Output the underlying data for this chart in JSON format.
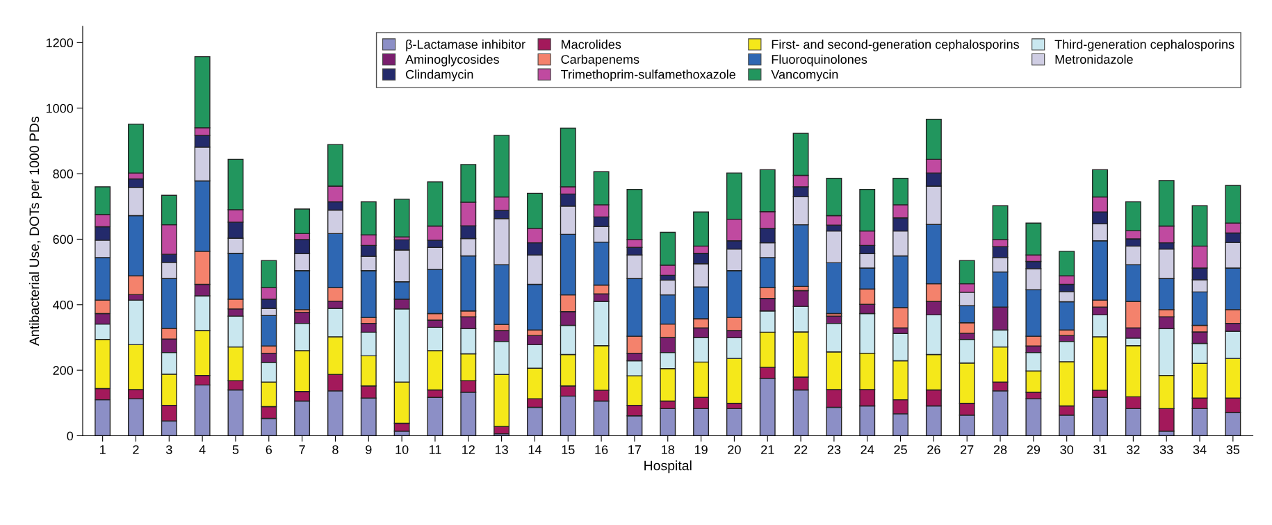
{
  "chart_data": {
    "type": "bar",
    "stacked": true,
    "xlabel": "Hospital",
    "ylabel": "Antibacterial Use, DOTs per 1000 PDs",
    "categories": [
      "1",
      "2",
      "3",
      "4",
      "5",
      "6",
      "7",
      "8",
      "9",
      "10",
      "11",
      "12",
      "13",
      "14",
      "15",
      "16",
      "17",
      "18",
      "19",
      "20",
      "21",
      "22",
      "23",
      "24",
      "25",
      "26",
      "27",
      "28",
      "29",
      "30",
      "31",
      "32",
      "33",
      "34",
      "35"
    ],
    "ylim": [
      0,
      1250
    ],
    "yticks": [
      0,
      200,
      400,
      600,
      800,
      1000,
      1200
    ],
    "grid": false,
    "legend": "top right",
    "series": [
      {
        "name": "β-Lactamase inhibitor",
        "color": "#8c8fc6",
        "values": [
          110,
          113,
          45,
          155,
          140,
          53,
          106,
          137,
          115,
          14,
          117,
          133,
          6,
          87,
          121,
          106,
          61,
          83,
          83,
          83,
          175,
          140,
          87,
          91,
          67,
          91,
          63,
          137,
          113,
          63,
          117,
          83,
          14,
          83,
          71
        ]
      },
      {
        "name": "Macrolides",
        "color": "#a3195b",
        "values": [
          34,
          28,
          48,
          29,
          28,
          36,
          29,
          50,
          37,
          24,
          23,
          35,
          22,
          26,
          31,
          33,
          32,
          23,
          34,
          16,
          34,
          39,
          54,
          50,
          43,
          49,
          36,
          27,
          20,
          28,
          22,
          36,
          69,
          32,
          44
        ]
      },
      {
        "name": "First- and second-generation cephalosporins",
        "color": "#f5e81a",
        "values": [
          150,
          137,
          95,
          137,
          103,
          75,
          125,
          115,
          92,
          126,
          120,
          82,
          159,
          93,
          96,
          136,
          90,
          99,
          108,
          137,
          107,
          138,
          115,
          111,
          119,
          108,
          123,
          107,
          65,
          135,
          163,
          156,
          101,
          106,
          121
        ]
      },
      {
        "name": "Third-generation cephalosporins",
        "color": "#c9e7ef",
        "values": [
          47,
          136,
          66,
          106,
          94,
          60,
          83,
          87,
          72,
          223,
          71,
          77,
          101,
          72,
          89,
          135,
          46,
          49,
          75,
          63,
          65,
          78,
          87,
          121,
          83,
          121,
          72,
          52,
          56,
          62,
          67,
          23,
          143,
          61,
          83
        ]
      },
      {
        "name": "Aminoglycosides",
        "color": "#7a1f6e",
        "values": [
          32,
          17,
          41,
          35,
          22,
          28,
          34,
          22,
          27,
          30,
          22,
          36,
          33,
          28,
          42,
          23,
          23,
          46,
          29,
          22,
          38,
          48,
          22,
          28,
          17,
          41,
          19,
          70,
          20,
          18,
          24,
          31,
          36,
          35,
          24
        ]
      },
      {
        "name": "Carbapenems",
        "color": "#f4826c",
        "values": [
          41,
          57,
          33,
          101,
          30,
          22,
          8,
          41,
          18,
          0,
          20,
          18,
          19,
          17,
          51,
          27,
          52,
          41,
          28,
          40,
          33,
          13,
          8,
          47,
          62,
          54,
          32,
          0,
          30,
          17,
          21,
          81,
          22,
          20,
          42
        ]
      },
      {
        "name": "Fluoroquinolones",
        "color": "#2e67b3",
        "values": [
          130,
          184,
          152,
          215,
          140,
          93,
          119,
          165,
          143,
          53,
          135,
          168,
          182,
          139,
          185,
          131,
          176,
          89,
          97,
          143,
          92,
          188,
          155,
          64,
          158,
          181,
          52,
          107,
          142,
          86,
          181,
          112,
          95,
          102,
          127
        ]
      },
      {
        "name": "Metronidazole",
        "color": "#cfcde3",
        "values": [
          53,
          86,
          49,
          103,
          46,
          22,
          52,
          72,
          44,
          97,
          67,
          53,
          141,
          90,
          86,
          48,
          72,
          45,
          71,
          66,
          45,
          86,
          97,
          44,
          76,
          117,
          41,
          44,
          64,
          31,
          52,
          57,
          90,
          37,
          78
        ]
      },
      {
        "name": "Clindamycin",
        "color": "#232a6b",
        "values": [
          41,
          26,
          25,
          36,
          49,
          28,
          43,
          25,
          33,
          31,
          22,
          39,
          25,
          37,
          37,
          29,
          23,
          15,
          32,
          25,
          44,
          30,
          18,
          25,
          40,
          40,
          0,
          33,
          22,
          22,
          36,
          22,
          19,
          36,
          29
        ]
      },
      {
        "name": "Trimethoprim-sulfamethoxazole",
        "color": "#c04aa0",
        "values": [
          37,
          18,
          90,
          23,
          38,
          35,
          18,
          48,
          32,
          9,
          43,
          72,
          41,
          44,
          22,
          37,
          24,
          31,
          22,
          66,
          51,
          35,
          29,
          44,
          40,
          42,
          26,
          22,
          20,
          26,
          46,
          25,
          51,
          67,
          30
        ]
      },
      {
        "name": "Vancomycin",
        "color": "#22965e",
        "values": [
          85,
          149,
          90,
          217,
          154,
          83,
          75,
          127,
          101,
          115,
          135,
          115,
          188,
          107,
          179,
          101,
          153,
          100,
          104,
          141,
          128,
          128,
          114,
          127,
          81,
          122,
          71,
          103,
          97,
          75,
          83,
          88,
          139,
          123,
          115
        ]
      }
    ]
  }
}
